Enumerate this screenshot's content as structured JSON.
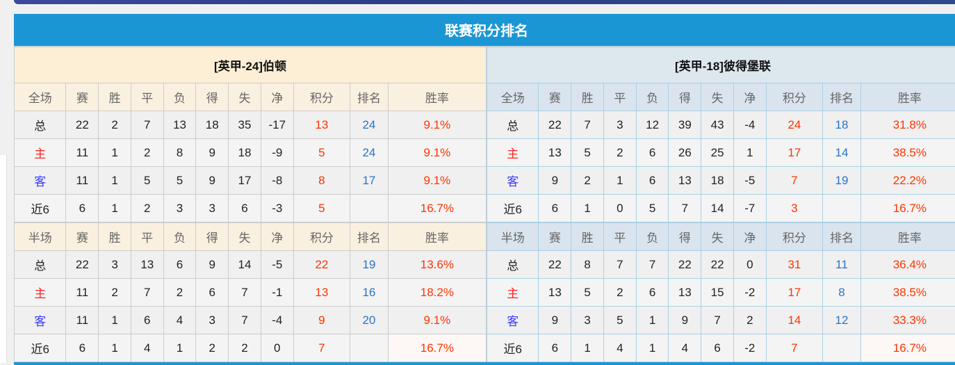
{
  "title": "联赛积分排名",
  "colors": {
    "title_bg": "#1b96d4",
    "points": "#ff3300",
    "rank": "#2a73c9",
    "home": "#ff2020",
    "away": "#3838ff"
  },
  "columns": [
    "赛",
    "胜",
    "平",
    "负",
    "得",
    "失",
    "净",
    "积分",
    "排名",
    "胜率"
  ],
  "teams": [
    {
      "name_prefix": "[英甲-24]",
      "name": "伯顿",
      "sections": [
        {
          "label": "全场",
          "rows": [
            [
              "总",
              "22",
              "2",
              "7",
              "13",
              "18",
              "35",
              "-17",
              "13",
              "24",
              "9.1%"
            ],
            [
              "主",
              "11",
              "1",
              "2",
              "8",
              "9",
              "18",
              "-9",
              "5",
              "24",
              "9.1%"
            ],
            [
              "客",
              "11",
              "1",
              "5",
              "5",
              "9",
              "17",
              "-8",
              "8",
              "17",
              "9.1%"
            ],
            [
              "近6",
              "6",
              "1",
              "2",
              "3",
              "3",
              "6",
              "-3",
              "5",
              "",
              "16.7%"
            ]
          ]
        },
        {
          "label": "半场",
          "rows": [
            [
              "总",
              "22",
              "3",
              "13",
              "6",
              "9",
              "14",
              "-5",
              "22",
              "19",
              "13.6%"
            ],
            [
              "主",
              "11",
              "2",
              "7",
              "2",
              "6",
              "7",
              "-1",
              "13",
              "16",
              "18.2%"
            ],
            [
              "客",
              "11",
              "1",
              "6",
              "4",
              "3",
              "7",
              "-4",
              "9",
              "20",
              "9.1%"
            ],
            [
              "近6",
              "6",
              "1",
              "4",
              "1",
              "2",
              "2",
              "0",
              "7",
              "",
              "16.7%"
            ]
          ]
        }
      ]
    },
    {
      "name_prefix": "[英甲-18]",
      "name": "彼得堡联",
      "sections": [
        {
          "label": "全场",
          "rows": [
            [
              "总",
              "22",
              "7",
              "3",
              "12",
              "39",
              "43",
              "-4",
              "24",
              "18",
              "31.8%"
            ],
            [
              "主",
              "13",
              "5",
              "2",
              "6",
              "26",
              "25",
              "1",
              "17",
              "14",
              "38.5%"
            ],
            [
              "客",
              "9",
              "2",
              "1",
              "6",
              "13",
              "18",
              "-5",
              "7",
              "19",
              "22.2%"
            ],
            [
              "近6",
              "6",
              "1",
              "0",
              "5",
              "7",
              "14",
              "-7",
              "3",
              "",
              "16.7%"
            ]
          ]
        },
        {
          "label": "半场",
          "rows": [
            [
              "总",
              "22",
              "8",
              "7",
              "7",
              "22",
              "22",
              "0",
              "31",
              "11",
              "36.4%"
            ],
            [
              "主",
              "13",
              "5",
              "2",
              "6",
              "13",
              "15",
              "-2",
              "17",
              "8",
              "38.5%"
            ],
            [
              "客",
              "9",
              "3",
              "5",
              "1",
              "9",
              "7",
              "2",
              "14",
              "12",
              "33.3%"
            ],
            [
              "近6",
              "6",
              "1",
              "4",
              "1",
              "4",
              "6",
              "-2",
              "7",
              "",
              "16.7%"
            ]
          ]
        }
      ]
    }
  ]
}
